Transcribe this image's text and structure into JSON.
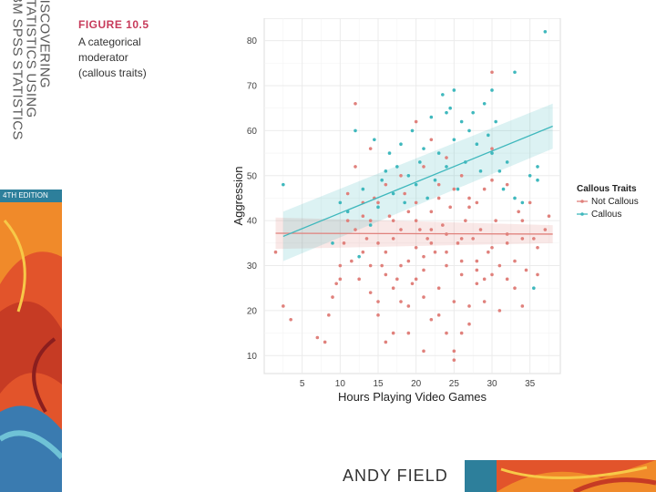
{
  "cover": {
    "title_lines": [
      "DISCOVERING",
      "STATISTICS USING",
      "IBM SPSS STATISTICS"
    ],
    "edition": "4TH EDITION"
  },
  "caption": {
    "figure_label": "FIGURE 10.5",
    "description_lines": [
      "A categorical",
      "moderator",
      "(callous traits)"
    ]
  },
  "author": "ANDY FIELD",
  "colors": {
    "not_callous": "#e0817c",
    "callous": "#3fb8bd",
    "panel_bg": "#ffffff",
    "grid": "#ebebeb",
    "fig_label": "#c73a5a",
    "edition_bar": "#2d7f9b"
  },
  "chart_data": {
    "type": "scatter",
    "xlabel": "Hours Playing Video Games",
    "ylabel": "Aggression",
    "xlim": [
      0,
      39
    ],
    "ylim": [
      6,
      85
    ],
    "x_ticks": [
      5,
      10,
      15,
      20,
      25,
      30,
      35
    ],
    "y_ticks": [
      10,
      20,
      30,
      40,
      50,
      60,
      70,
      80
    ],
    "grid": true,
    "legend": {
      "title": "Callous Traits",
      "placement": "right"
    },
    "series": [
      {
        "name": "Not Callous",
        "color": "#e0817c",
        "fit": {
          "x": [
            1.5,
            38
          ],
          "y": [
            37.2,
            37.0
          ],
          "ci_halfwidth": [
            3.5,
            2.0
          ]
        },
        "points": [
          [
            1.5,
            33
          ],
          [
            2.5,
            21
          ],
          [
            3.5,
            18
          ],
          [
            7,
            14
          ],
          [
            8,
            13
          ],
          [
            8.5,
            19
          ],
          [
            9,
            23
          ],
          [
            9.5,
            26
          ],
          [
            10,
            30
          ],
          [
            10.5,
            35
          ],
          [
            11,
            46
          ],
          [
            11.5,
            31
          ],
          [
            12,
            38
          ],
          [
            12,
            66
          ],
          [
            12.5,
            27
          ],
          [
            13,
            33
          ],
          [
            13.5,
            36
          ],
          [
            14,
            24
          ],
          [
            14,
            40
          ],
          [
            14.5,
            45
          ],
          [
            15,
            22
          ],
          [
            15,
            35
          ],
          [
            15.5,
            30
          ],
          [
            16,
            13
          ],
          [
            16,
            28
          ],
          [
            16.5,
            41
          ],
          [
            17,
            15
          ],
          [
            17,
            36
          ],
          [
            17.5,
            27
          ],
          [
            18,
            22
          ],
          [
            18,
            38
          ],
          [
            18.5,
            46
          ],
          [
            19,
            31
          ],
          [
            19,
            15
          ],
          [
            19.5,
            26
          ],
          [
            20,
            34
          ],
          [
            20,
            44
          ],
          [
            20.5,
            38
          ],
          [
            21,
            11
          ],
          [
            21,
            29
          ],
          [
            21.5,
            36
          ],
          [
            22,
            18
          ],
          [
            22,
            42
          ],
          [
            22.5,
            33
          ],
          [
            23,
            25
          ],
          [
            23,
            48
          ],
          [
            23.5,
            39
          ],
          [
            24,
            15
          ],
          [
            24,
            30
          ],
          [
            24.5,
            43
          ],
          [
            25,
            9
          ],
          [
            25,
            11
          ],
          [
            25.5,
            35
          ],
          [
            26,
            15
          ],
          [
            26,
            28
          ],
          [
            26.5,
            40
          ],
          [
            27,
            21
          ],
          [
            27,
            45
          ],
          [
            27.5,
            36
          ],
          [
            28,
            26
          ],
          [
            28,
            31
          ],
          [
            28.5,
            38
          ],
          [
            29,
            22
          ],
          [
            29,
            47
          ],
          [
            29.5,
            33
          ],
          [
            30,
            28
          ],
          [
            30,
            73
          ],
          [
            30.5,
            40
          ],
          [
            31,
            30
          ],
          [
            32,
            35
          ],
          [
            33,
            25
          ],
          [
            33.5,
            42
          ],
          [
            34,
            21
          ],
          [
            34.5,
            29
          ],
          [
            35,
            44
          ],
          [
            35.5,
            36
          ],
          [
            36,
            34
          ],
          [
            37,
            38
          ],
          [
            37.5,
            41
          ],
          [
            12,
            52
          ],
          [
            13,
            44
          ],
          [
            14,
            56
          ],
          [
            16,
            48
          ],
          [
            18,
            50
          ],
          [
            20,
            62
          ],
          [
            21,
            52
          ],
          [
            22,
            58
          ],
          [
            24,
            54
          ],
          [
            26,
            50
          ],
          [
            28,
            44
          ],
          [
            30,
            56
          ],
          [
            32,
            48
          ],
          [
            34,
            40
          ],
          [
            15,
            19
          ],
          [
            17,
            25
          ],
          [
            19,
            21
          ],
          [
            21,
            23
          ],
          [
            23,
            19
          ],
          [
            25,
            22
          ],
          [
            27,
            17
          ],
          [
            29,
            27
          ],
          [
            31,
            20
          ],
          [
            33,
            31
          ],
          [
            16,
            33
          ],
          [
            18,
            30
          ],
          [
            20,
            27
          ],
          [
            22,
            35
          ],
          [
            24,
            33
          ],
          [
            26,
            31
          ],
          [
            28,
            29
          ],
          [
            30,
            34
          ],
          [
            32,
            37
          ],
          [
            14,
            30
          ],
          [
            20,
            40
          ],
          [
            22,
            38
          ],
          [
            24,
            37
          ],
          [
            26,
            36
          ],
          [
            19,
            42
          ],
          [
            23,
            45
          ],
          [
            25,
            47
          ],
          [
            27,
            43
          ],
          [
            21,
            32
          ],
          [
            17,
            40
          ],
          [
            15,
            44
          ],
          [
            13,
            41
          ],
          [
            11,
            40
          ],
          [
            10,
            27
          ],
          [
            36,
            28
          ],
          [
            34,
            36
          ],
          [
            32,
            27
          ],
          [
            30,
            49
          ]
        ]
      },
      {
        "name": "Callous",
        "color": "#3fb8bd",
        "fit": {
          "x": [
            2.5,
            38
          ],
          "y": [
            36.5,
            61.0
          ],
          "ci_halfwidth": [
            5.5,
            5.0
          ]
        },
        "points": [
          [
            2.5,
            48
          ],
          [
            9,
            35
          ],
          [
            10,
            44
          ],
          [
            11,
            42
          ],
          [
            12,
            60
          ],
          [
            12.5,
            32
          ],
          [
            13,
            47
          ],
          [
            14,
            39
          ],
          [
            14.5,
            58
          ],
          [
            15,
            43
          ],
          [
            15.5,
            49
          ],
          [
            16,
            51
          ],
          [
            16.5,
            55
          ],
          [
            17,
            46
          ],
          [
            17.5,
            52
          ],
          [
            18,
            57
          ],
          [
            18.5,
            44
          ],
          [
            19,
            50
          ],
          [
            19.5,
            60
          ],
          [
            20,
            48
          ],
          [
            20.5,
            53
          ],
          [
            21,
            56
          ],
          [
            21.5,
            45
          ],
          [
            22,
            63
          ],
          [
            22.5,
            49
          ],
          [
            23,
            55
          ],
          [
            23.5,
            68
          ],
          [
            24,
            52
          ],
          [
            24.5,
            65
          ],
          [
            25,
            58
          ],
          [
            25.5,
            47
          ],
          [
            26,
            62
          ],
          [
            26.5,
            53
          ],
          [
            27,
            60
          ],
          [
            27.5,
            64
          ],
          [
            28,
            57
          ],
          [
            28.5,
            51
          ],
          [
            29,
            66
          ],
          [
            29.5,
            59
          ],
          [
            30,
            55
          ],
          [
            30.5,
            62
          ],
          [
            31,
            51
          ],
          [
            31.5,
            47
          ],
          [
            32,
            53
          ],
          [
            33,
            73
          ],
          [
            34,
            44
          ],
          [
            35,
            50
          ],
          [
            35.5,
            25
          ],
          [
            36,
            52
          ],
          [
            37,
            82
          ],
          [
            25,
            69
          ],
          [
            24,
            64
          ],
          [
            30,
            69
          ],
          [
            33,
            45
          ],
          [
            36,
            49
          ]
        ]
      }
    ]
  }
}
